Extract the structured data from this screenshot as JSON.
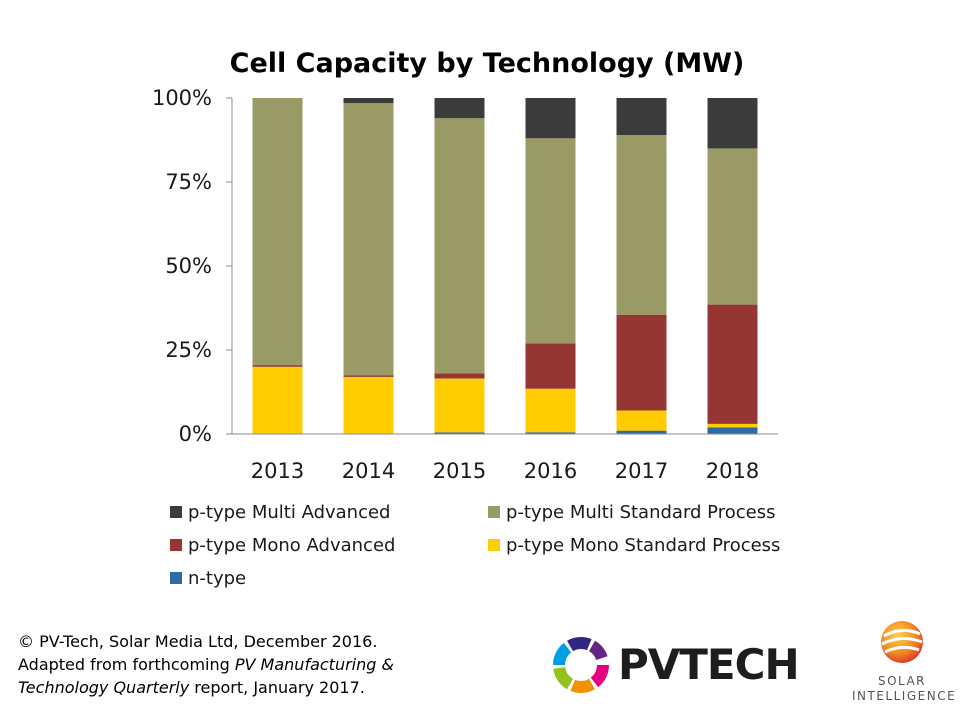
{
  "chart_data": {
    "type": "bar",
    "stacked": true,
    "normalized": true,
    "title": "Cell Capacity by Technology (MW)",
    "categories": [
      "2013",
      "2014",
      "2015",
      "2016",
      "2017",
      "2018"
    ],
    "yticks": [
      "0%",
      "25%",
      "50%",
      "75%",
      "100%"
    ],
    "ylim": [
      0,
      100
    ],
    "series": [
      {
        "name": "n-type",
        "color": "#2e6aa6",
        "values": [
          0,
          0,
          0.5,
          0.5,
          1,
          2
        ]
      },
      {
        "name": "p-type Mono Standard Process",
        "color": "#ffcc00",
        "values": [
          20,
          17,
          16,
          13,
          6,
          1
        ]
      },
      {
        "name": "p-type Mono Advanced",
        "color": "#963634",
        "values": [
          0.5,
          0.5,
          1.5,
          13.5,
          28.5,
          35.5
        ]
      },
      {
        "name": "p-type Multi Standard Process",
        "color": "#9a9a66",
        "values": [
          79.5,
          81,
          76,
          61,
          53.5,
          46.5
        ]
      },
      {
        "name": "p-type Multi Advanced",
        "color": "#3b3b3b",
        "values": [
          0,
          1.5,
          6,
          12,
          11,
          15
        ]
      }
    ],
    "legend": [
      "p-type Multi Advanced",
      "p-type Multi Standard Process",
      "p-type Mono Advanced",
      "p-type Mono Standard Process",
      "n-type"
    ]
  },
  "credits": {
    "line1": "© PV-Tech, Solar Media Ltd, December  2016.",
    "line2_prefix": "Adapted from forthcoming ",
    "line2_italic": "PV Manufacturing &",
    "line3_italic": "Technology Quarterly",
    "line3_suffix": " report, January 2017."
  },
  "logos": {
    "pvtech": "PVTECH",
    "solar_top": "SOLAR",
    "solar_bottom": "INTELLIGENCE"
  }
}
